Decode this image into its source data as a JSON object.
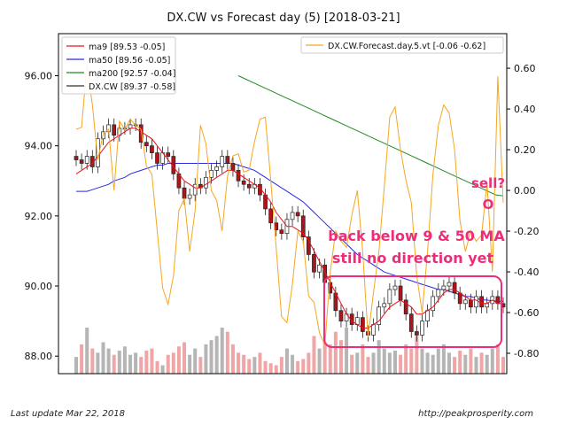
{
  "chart_data": {
    "type": "candlestick",
    "title": "DX.CW vs Forecast day (5)  [2018-03-21]",
    "left_axis": {
      "ylim": [
        87.5,
        97.2
      ],
      "ticks": [
        88.0,
        90.0,
        92.0,
        94.0,
        96.0
      ],
      "tick_labels": [
        "88.00",
        "90.00",
        "92.00",
        "94.00",
        "96.00"
      ]
    },
    "right_axis": {
      "ylim": [
        -0.9,
        0.77
      ],
      "ticks": [
        -0.8,
        -0.6,
        -0.4,
        -0.2,
        0.0,
        0.2,
        0.4,
        0.6
      ],
      "tick_labels": [
        "-0.80",
        "-0.60",
        "-0.40",
        "-0.20",
        "0.00",
        "0.20",
        "0.40",
        "0.60"
      ]
    },
    "grid": false,
    "legend_left": [
      {
        "label": "ma9 [89.53 -0.05]",
        "color": "#e8141a"
      },
      {
        "label": "ma50 [89.56 -0.05]",
        "color": "#2a2ae0"
      },
      {
        "label": "ma200 [92.57 -0.04]",
        "color": "#208a20"
      },
      {
        "label": "DX.CW [89.37 -0.58]",
        "color": "#333333"
      }
    ],
    "legend_right": [
      {
        "label": "DX.CW.Forecast.day.5.vt [-0.06 -0.62]",
        "color": "#f5a623"
      }
    ],
    "close": [
      93.6,
      93.5,
      93.7,
      93.4,
      94.2,
      94.4,
      94.6,
      94.3,
      94.5,
      94.5,
      94.6,
      94.6,
      94.1,
      94.0,
      93.8,
      93.5,
      93.8,
      93.7,
      93.2,
      92.8,
      92.5,
      92.6,
      92.9,
      92.8,
      93.1,
      93.3,
      93.4,
      93.7,
      93.5,
      93.3,
      93.0,
      92.9,
      92.8,
      92.9,
      92.6,
      92.2,
      91.8,
      91.6,
      91.5,
      91.9,
      92.1,
      92.0,
      91.4,
      90.9,
      90.4,
      90.6,
      90.1,
      89.8,
      89.3,
      89.0,
      89.2,
      88.9,
      89.1,
      88.7,
      88.6,
      88.9,
      89.4,
      89.5,
      89.9,
      90.0,
      89.6,
      89.2,
      88.7,
      88.6,
      89.0,
      89.3,
      89.7,
      89.9,
      90.0,
      90.1,
      89.8,
      89.5,
      89.6,
      89.4,
      89.7,
      89.4,
      89.5,
      89.7,
      89.5,
      89.4
    ],
    "ma9": [
      93.2,
      93.3,
      93.4,
      93.5,
      93.7,
      93.9,
      94.1,
      94.2,
      94.3,
      94.4,
      94.5,
      94.5,
      94.4,
      94.3,
      94.2,
      94.0,
      93.8,
      93.6,
      93.4,
      93.2,
      93.0,
      92.9,
      92.8,
      92.8,
      92.9,
      93.0,
      93.1,
      93.2,
      93.3,
      93.3,
      93.2,
      93.1,
      93.0,
      92.9,
      92.8,
      92.6,
      92.4,
      92.1,
      91.9,
      91.7,
      91.7,
      91.6,
      91.5,
      91.3,
      91.0,
      90.7,
      90.4,
      90.1,
      89.8,
      89.5,
      89.2,
      89.0,
      88.9,
      88.8,
      88.8,
      88.9,
      89.0,
      89.2,
      89.4,
      89.5,
      89.6,
      89.5,
      89.4,
      89.2,
      89.2,
      89.3,
      89.4,
      89.6,
      89.8,
      89.9,
      89.9,
      89.8,
      89.7,
      89.6,
      89.6,
      89.5,
      89.5,
      89.6,
      89.5,
      89.5
    ],
    "ma50": [
      92.7,
      92.7,
      92.7,
      92.75,
      92.8,
      92.85,
      92.9,
      93.0,
      93.05,
      93.1,
      93.2,
      93.25,
      93.3,
      93.35,
      93.4,
      93.45,
      93.45,
      93.5,
      93.5,
      93.5,
      93.5,
      93.5,
      93.5,
      93.5,
      93.5,
      93.5,
      93.5,
      93.5,
      93.5,
      93.5,
      93.45,
      93.4,
      93.35,
      93.3,
      93.2,
      93.1,
      93.0,
      92.9,
      92.8,
      92.7,
      92.6,
      92.5,
      92.4,
      92.25,
      92.1,
      91.95,
      91.8,
      91.65,
      91.5,
      91.35,
      91.2,
      91.05,
      90.9,
      90.8,
      90.7,
      90.6,
      90.5,
      90.4,
      90.35,
      90.3,
      90.25,
      90.2,
      90.15,
      90.1,
      90.05,
      90.0,
      89.95,
      89.9,
      89.9,
      89.85,
      89.8,
      89.75,
      89.7,
      89.7,
      89.65,
      89.6,
      89.6,
      89.58,
      89.57,
      89.56
    ],
    "ma200_x_range": [
      30,
      79
    ],
    "ma200": [
      96.0,
      95.9,
      95.8,
      95.7,
      95.6,
      95.5,
      95.4,
      95.3,
      95.2,
      95.1,
      95.0,
      94.9,
      94.8,
      94.7,
      94.6,
      94.5,
      94.4,
      94.3,
      94.2,
      94.1,
      94.0,
      93.9,
      93.8,
      93.7,
      93.6,
      93.5,
      93.4,
      93.3,
      93.2,
      93.1,
      93.0,
      92.9,
      92.8,
      92.7,
      92.6,
      92.57
    ],
    "forecast": [
      0.3,
      0.31,
      0.62,
      0.42,
      0.15,
      0.28,
      0.3,
      0.0,
      0.34,
      0.3,
      0.35,
      0.32,
      0.3,
      0.12,
      0.08,
      -0.2,
      -0.48,
      -0.56,
      -0.42,
      -0.1,
      -0.04,
      -0.3,
      -0.1,
      0.32,
      0.23,
      0.0,
      -0.05,
      -0.2,
      0.07,
      0.17,
      0.18,
      0.09,
      0.1,
      0.24,
      0.35,
      0.36,
      0.05,
      -0.28,
      -0.62,
      -0.65,
      -0.46,
      -0.2,
      -0.25,
      -0.52,
      -0.55,
      -0.7,
      -0.76,
      -0.4,
      -0.2,
      -0.25,
      -0.28,
      -0.12,
      0.0,
      -0.3,
      -0.72,
      -0.5,
      -0.3,
      0.02,
      0.36,
      0.41,
      0.2,
      0.05,
      -0.06,
      -0.42,
      -0.6,
      -0.3,
      0.08,
      0.32,
      0.42,
      0.38,
      0.2,
      -0.15,
      -0.3,
      -0.2,
      -0.25,
      -0.22,
      0.04,
      -0.4,
      0.56,
      -0.06
    ],
    "volume": [
      8,
      14,
      22,
      12,
      10,
      15,
      12,
      9,
      11,
      13,
      9,
      10,
      8,
      11,
      12,
      6,
      4,
      9,
      10,
      13,
      15,
      9,
      12,
      8,
      14,
      16,
      18,
      22,
      20,
      14,
      10,
      9,
      7,
      8,
      10,
      6,
      5,
      4,
      8,
      12,
      9,
      6,
      7,
      10,
      18,
      12,
      15,
      14,
      20,
      16,
      22,
      9,
      10,
      14,
      8,
      10,
      16,
      12,
      10,
      11,
      9,
      14,
      12,
      18,
      12,
      10,
      9,
      12,
      14,
      10,
      8,
      11,
      9,
      12,
      8,
      10,
      9,
      12,
      14,
      8
    ],
    "annotations": [
      "sell?",
      "O",
      "back below 9 & 50 MA",
      "still no direction yet"
    ]
  },
  "footer": {
    "left": "Last update Mar 22, 2018",
    "right": "http://peakprosperity.com"
  }
}
